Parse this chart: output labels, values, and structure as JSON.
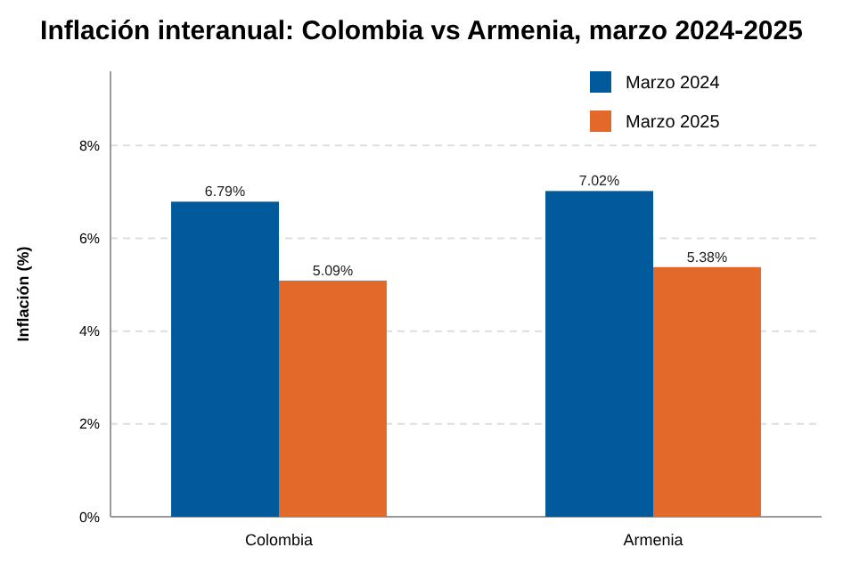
{
  "chart_data": {
    "type": "bar",
    "title": "Inflación interanual: Colombia vs Armenia, marzo 2024-2025",
    "ylabel": "Inflación (%)",
    "categories": [
      "Colombia",
      "Armenia"
    ],
    "series": [
      {
        "name": "Marzo 2024",
        "color": "#005a9c",
        "values": [
          6.79,
          7.02
        ]
      },
      {
        "name": "Marzo 2025",
        "color": "#e3692a",
        "values": [
          5.09,
          5.38
        ]
      }
    ],
    "value_labels": [
      [
        "6.79%",
        "7.02%"
      ],
      [
        "5.09%",
        "5.38%"
      ]
    ],
    "ylim": [
      0,
      9.6
    ],
    "yticks": [
      {
        "value": 0,
        "label": "0%"
      },
      {
        "value": 2,
        "label": "2%"
      },
      {
        "value": 4,
        "label": "4%"
      },
      {
        "value": 6,
        "label": "6%"
      },
      {
        "value": 8,
        "label": "8%"
      }
    ],
    "grid": "y",
    "legend": "top right"
  }
}
